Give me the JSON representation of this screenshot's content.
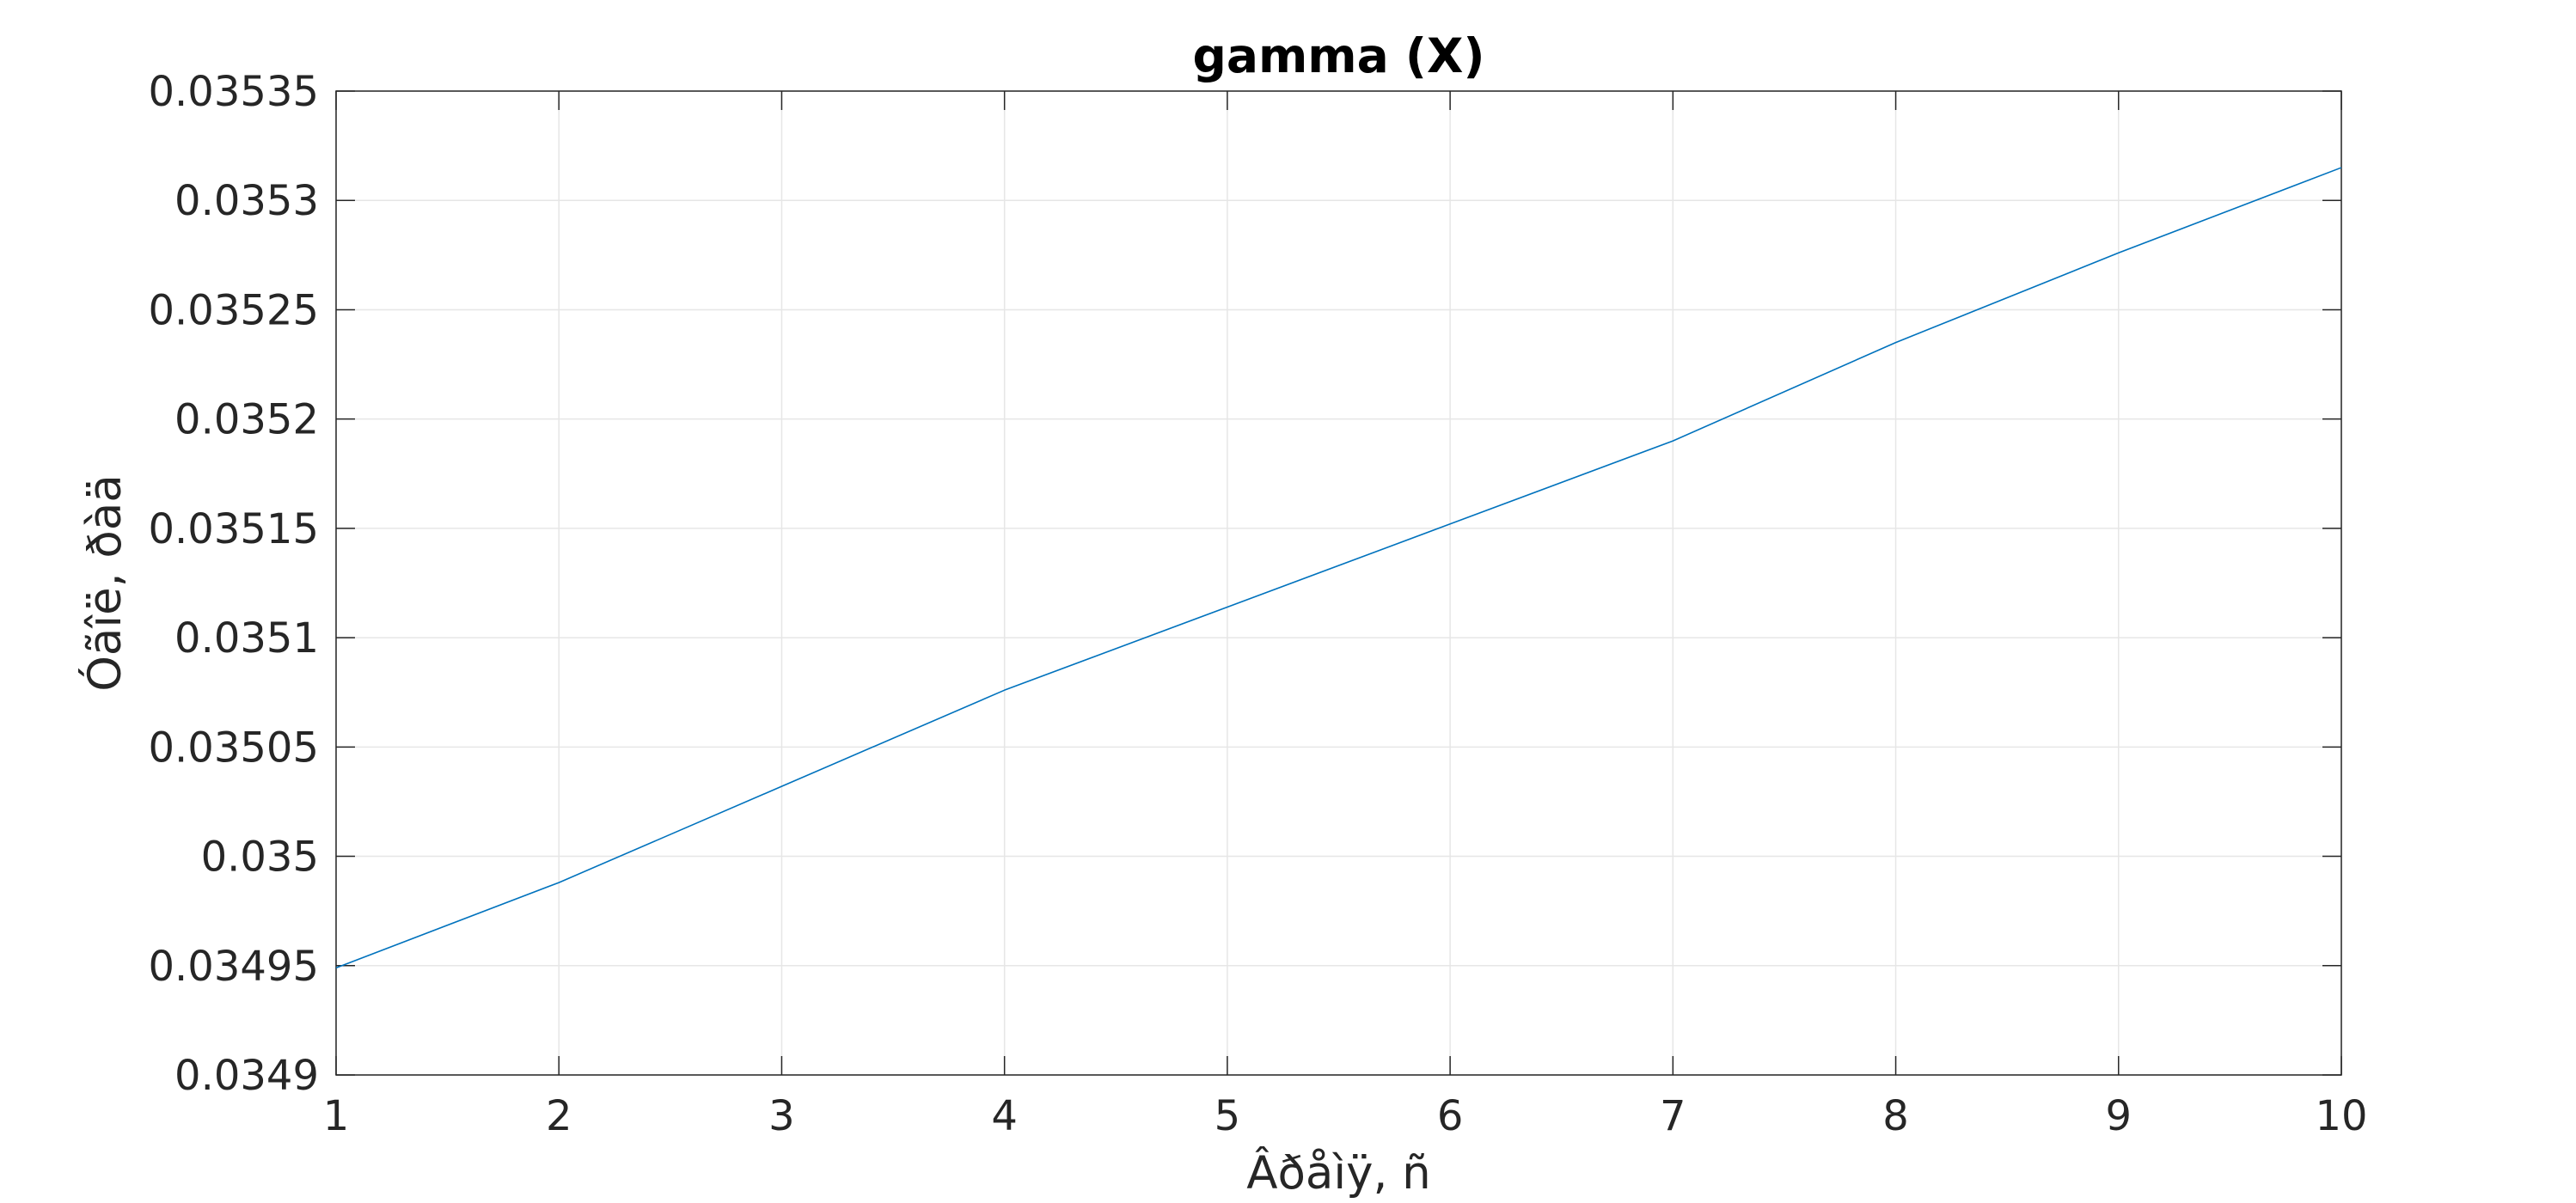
{
  "chart_data": {
    "type": "line",
    "title": "gamma (X)",
    "xlabel": "Âðåìÿ, ñ",
    "ylabel": "Óãîë, ðàä",
    "x": [
      1,
      2,
      3,
      4,
      5,
      6,
      7,
      8,
      9,
      10
    ],
    "series": [
      {
        "values": [
          0.034949,
          0.034988,
          0.035032,
          0.035076,
          0.035114,
          0.035152,
          0.03519,
          0.035235,
          0.035276,
          0.035315
        ],
        "color": "#0072BD"
      }
    ],
    "xlim": [
      1,
      10
    ],
    "ylim": [
      0.0349,
      0.03535
    ],
    "x_ticks": [
      "1",
      "2",
      "3",
      "4",
      "5",
      "6",
      "7",
      "8",
      "9",
      "10"
    ],
    "y_ticks": [
      "0.0349",
      "0.03495",
      "0.035",
      "0.03505",
      "0.0351",
      "0.03515",
      "0.0352",
      "0.03525",
      "0.0353",
      "0.03535"
    ],
    "grid": true,
    "legend": "none"
  }
}
